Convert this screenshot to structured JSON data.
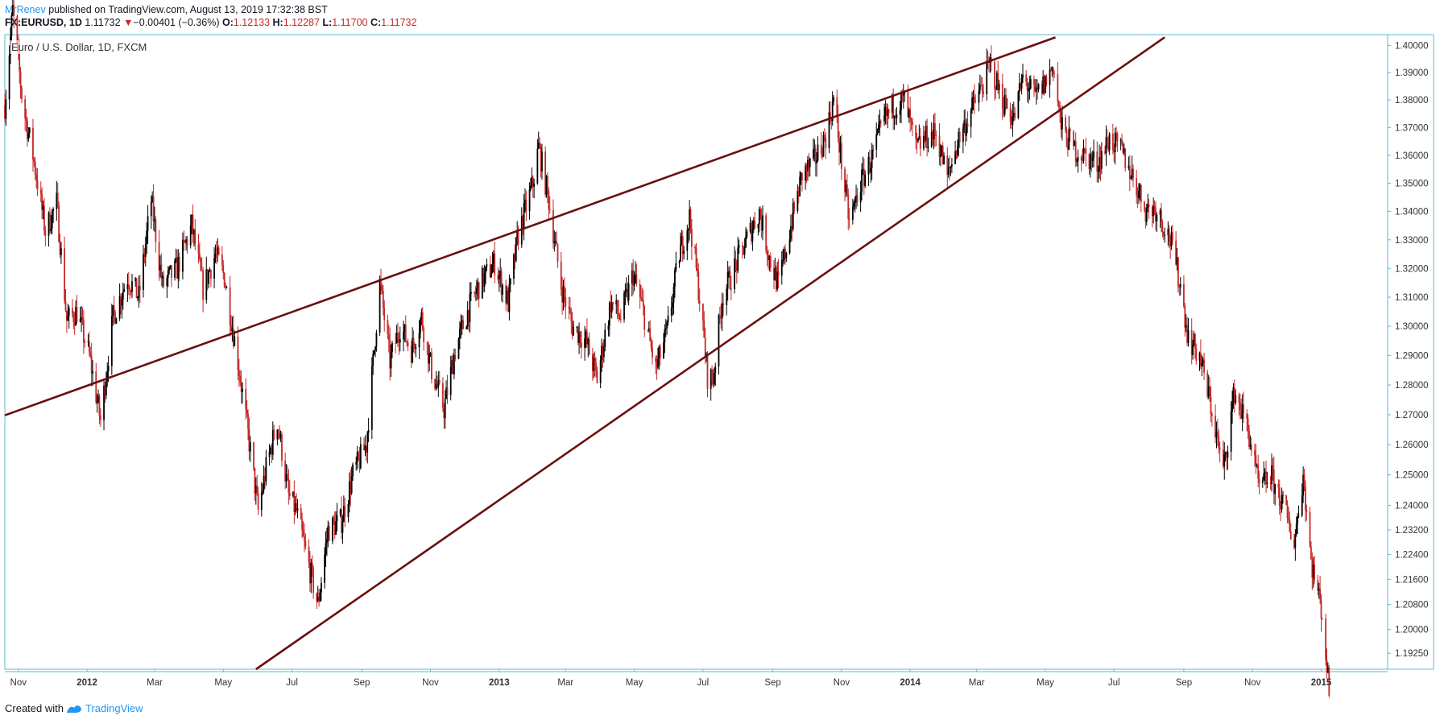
{
  "header": {
    "author": "MrRenev",
    "published": "published on TradingView.com, August 13, 2019 17:32:38 BST",
    "symbol": "FX:EURUSD, 1D",
    "price": "1.11732",
    "change_arrow": "▼",
    "change": "−0.00401 (−0.36%)",
    "o_label": "O:",
    "o_value": "1.12133",
    "h_label": "H:",
    "h_value": "1.12287",
    "l_label": "L:",
    "l_value": "1.11700",
    "c_label": "C:",
    "c_value": "1.11732"
  },
  "footer": {
    "created_with": "Created with",
    "brand": "TradingView"
  },
  "colors": {
    "up_candle": "#000000",
    "down_candle": "#c62828",
    "trendline": "#6b0f0f",
    "frame": "#5fb9d3",
    "author": "#2196f3"
  },
  "chart_data": {
    "type": "candlestick",
    "title": "Euro / U.S. Dollar, 1D, FXCM",
    "x_tick_labels": [
      "Nov",
      "2012",
      "Mar",
      "May",
      "Jul",
      "Sep",
      "Nov",
      "2013",
      "Mar",
      "May",
      "Jul",
      "Sep",
      "Nov",
      "2014",
      "Mar",
      "May",
      "Jul",
      "Sep",
      "Nov",
      "2015"
    ],
    "x_tick_dates": [
      "2011-11-01",
      "2012-01-01",
      "2012-03-01",
      "2012-05-01",
      "2012-07-01",
      "2012-09-01",
      "2012-11-01",
      "2013-01-01",
      "2013-03-01",
      "2013-05-01",
      "2013-07-01",
      "2013-09-01",
      "2013-11-01",
      "2014-01-01",
      "2014-03-01",
      "2014-05-01",
      "2014-07-01",
      "2014-09-01",
      "2014-11-01",
      "2015-01-01"
    ],
    "y_tick_labels": [
      "1.40000",
      "1.39000",
      "1.38000",
      "1.37000",
      "1.36000",
      "1.35000",
      "1.34000",
      "1.33000",
      "1.32000",
      "1.31000",
      "1.30000",
      "1.29000",
      "1.28000",
      "1.27000",
      "1.26000",
      "1.25000",
      "1.24000",
      "1.23200",
      "1.22400",
      "1.21600",
      "1.20800",
      "1.20000",
      "1.19250"
    ],
    "x_range": [
      "2011-10-20",
      "2015-03-01"
    ],
    "y_range": [
      1.1875,
      1.404
    ],
    "y_scale": "log",
    "grid": false,
    "price_path": [
      {
        "date": "2011-10-20",
        "close": 1.378
      },
      {
        "date": "2011-10-27",
        "close": 1.413
      },
      {
        "date": "2011-11-05",
        "close": 1.378
      },
      {
        "date": "2011-11-14",
        "close": 1.36
      },
      {
        "date": "2011-11-25",
        "close": 1.333
      },
      {
        "date": "2011-12-05",
        "close": 1.343
      },
      {
        "date": "2011-12-14",
        "close": 1.302
      },
      {
        "date": "2011-12-23",
        "close": 1.305
      },
      {
        "date": "2012-01-03",
        "close": 1.29
      },
      {
        "date": "2012-01-13",
        "close": 1.268
      },
      {
        "date": "2012-01-24",
        "close": 1.303
      },
      {
        "date": "2012-02-06",
        "close": 1.317
      },
      {
        "date": "2012-02-16",
        "close": 1.31
      },
      {
        "date": "2012-02-27",
        "close": 1.344
      },
      {
        "date": "2012-03-08",
        "close": 1.314
      },
      {
        "date": "2012-03-21",
        "close": 1.32
      },
      {
        "date": "2012-04-03",
        "close": 1.335
      },
      {
        "date": "2012-04-13",
        "close": 1.313
      },
      {
        "date": "2012-04-24",
        "close": 1.325
      },
      {
        "date": "2012-05-02",
        "close": 1.317
      },
      {
        "date": "2012-05-14",
        "close": 1.288
      },
      {
        "date": "2012-05-25",
        "close": 1.258
      },
      {
        "date": "2012-06-01",
        "close": 1.238
      },
      {
        "date": "2012-06-08",
        "close": 1.252
      },
      {
        "date": "2012-06-18",
        "close": 1.268
      },
      {
        "date": "2012-06-28",
        "close": 1.243
      },
      {
        "date": "2012-07-05",
        "close": 1.238
      },
      {
        "date": "2012-07-13",
        "close": 1.225
      },
      {
        "date": "2012-07-24",
        "close": 1.208
      },
      {
        "date": "2012-08-02",
        "close": 1.232
      },
      {
        "date": "2012-08-14",
        "close": 1.235
      },
      {
        "date": "2012-08-24",
        "close": 1.25
      },
      {
        "date": "2012-09-05",
        "close": 1.26
      },
      {
        "date": "2012-09-17",
        "close": 1.315
      },
      {
        "date": "2012-09-26",
        "close": 1.288
      },
      {
        "date": "2012-10-05",
        "close": 1.3
      },
      {
        "date": "2012-10-15",
        "close": 1.292
      },
      {
        "date": "2012-10-24",
        "close": 1.303
      },
      {
        "date": "2012-11-02",
        "close": 1.285
      },
      {
        "date": "2012-11-13",
        "close": 1.272
      },
      {
        "date": "2012-11-23",
        "close": 1.292
      },
      {
        "date": "2012-12-05",
        "close": 1.306
      },
      {
        "date": "2012-12-14",
        "close": 1.314
      },
      {
        "date": "2012-12-28",
        "close": 1.322
      },
      {
        "date": "2013-01-09",
        "close": 1.308
      },
      {
        "date": "2013-01-18",
        "close": 1.332
      },
      {
        "date": "2013-01-31",
        "close": 1.35
      },
      {
        "date": "2013-02-05",
        "close": 1.363
      },
      {
        "date": "2013-02-14",
        "close": 1.344
      },
      {
        "date": "2013-02-25",
        "close": 1.314
      },
      {
        "date": "2013-03-07",
        "close": 1.3
      },
      {
        "date": "2013-03-19",
        "close": 1.295
      },
      {
        "date": "2013-03-29",
        "close": 1.282
      },
      {
        "date": "2013-04-10",
        "close": 1.308
      },
      {
        "date": "2013-04-19",
        "close": 1.303
      },
      {
        "date": "2013-04-30",
        "close": 1.318
      },
      {
        "date": "2013-05-09",
        "close": 1.305
      },
      {
        "date": "2013-05-20",
        "close": 1.285
      },
      {
        "date": "2013-05-30",
        "close": 1.298
      },
      {
        "date": "2013-06-10",
        "close": 1.325
      },
      {
        "date": "2013-06-19",
        "close": 1.338
      },
      {
        "date": "2013-06-28",
        "close": 1.31
      },
      {
        "date": "2013-07-05",
        "close": 1.283
      },
      {
        "date": "2013-07-10",
        "close": 1.282
      },
      {
        "date": "2013-07-18",
        "close": 1.31
      },
      {
        "date": "2013-07-30",
        "close": 1.321
      },
      {
        "date": "2013-08-12",
        "close": 1.333
      },
      {
        "date": "2013-08-20",
        "close": 1.34
      },
      {
        "date": "2013-08-30",
        "close": 1.322
      },
      {
        "date": "2013-09-06",
        "close": 1.314
      },
      {
        "date": "2013-09-17",
        "close": 1.335
      },
      {
        "date": "2013-09-27",
        "close": 1.353
      },
      {
        "date": "2013-10-08",
        "close": 1.358
      },
      {
        "date": "2013-10-18",
        "close": 1.367
      },
      {
        "date": "2013-10-25",
        "close": 1.38
      },
      {
        "date": "2013-11-04",
        "close": 1.348
      },
      {
        "date": "2013-11-08",
        "close": 1.336
      },
      {
        "date": "2013-11-18",
        "close": 1.35
      },
      {
        "date": "2013-11-28",
        "close": 1.359
      },
      {
        "date": "2013-12-09",
        "close": 1.373
      },
      {
        "date": "2013-12-18",
        "close": 1.378
      },
      {
        "date": "2013-12-27",
        "close": 1.38
      },
      {
        "date": "2014-01-06",
        "close": 1.362
      },
      {
        "date": "2014-01-14",
        "close": 1.366
      },
      {
        "date": "2014-01-24",
        "close": 1.368
      },
      {
        "date": "2014-02-03",
        "close": 1.352
      },
      {
        "date": "2014-02-13",
        "close": 1.366
      },
      {
        "date": "2014-02-24",
        "close": 1.376
      },
      {
        "date": "2014-03-06",
        "close": 1.385
      },
      {
        "date": "2014-03-13",
        "close": 1.393
      },
      {
        "date": "2014-03-24",
        "close": 1.38
      },
      {
        "date": "2014-04-03",
        "close": 1.373
      },
      {
        "date": "2014-04-11",
        "close": 1.388
      },
      {
        "date": "2014-04-22",
        "close": 1.381
      },
      {
        "date": "2014-05-02",
        "close": 1.387
      },
      {
        "date": "2014-05-08",
        "close": 1.393
      },
      {
        "date": "2014-05-15",
        "close": 1.37
      },
      {
        "date": "2014-05-27",
        "close": 1.362
      },
      {
        "date": "2014-06-05",
        "close": 1.36
      },
      {
        "date": "2014-06-16",
        "close": 1.357
      },
      {
        "date": "2014-06-27",
        "close": 1.366
      },
      {
        "date": "2014-07-08",
        "close": 1.361
      },
      {
        "date": "2014-07-17",
        "close": 1.353
      },
      {
        "date": "2014-07-29",
        "close": 1.341
      },
      {
        "date": "2014-08-08",
        "close": 1.341
      },
      {
        "date": "2014-08-20",
        "close": 1.33
      },
      {
        "date": "2014-08-29",
        "close": 1.314
      },
      {
        "date": "2014-09-05",
        "close": 1.296
      },
      {
        "date": "2014-09-15",
        "close": 1.29
      },
      {
        "date": "2014-09-26",
        "close": 1.271
      },
      {
        "date": "2014-10-06",
        "close": 1.251
      },
      {
        "date": "2014-10-16",
        "close": 1.278
      },
      {
        "date": "2014-10-28",
        "close": 1.265
      },
      {
        "date": "2014-11-07",
        "close": 1.245
      },
      {
        "date": "2014-11-17",
        "close": 1.25
      },
      {
        "date": "2014-11-28",
        "close": 1.24
      },
      {
        "date": "2014-12-08",
        "close": 1.228
      },
      {
        "date": "2014-12-16",
        "close": 1.25
      },
      {
        "date": "2014-12-23",
        "close": 1.222
      },
      {
        "date": "2015-01-02",
        "close": 1.205
      },
      {
        "date": "2015-01-08",
        "close": 1.18
      }
    ],
    "trendlines": [
      {
        "name": "upper",
        "points": [
          {
            "date": "2011-10-20",
            "price": 1.2698
          },
          {
            "date": "2014-05-10",
            "price": 1.403
          }
        ]
      },
      {
        "name": "lower",
        "points": [
          {
            "date": "2012-05-30",
            "price": 1.1875
          },
          {
            "date": "2014-08-15",
            "price": 1.403
          }
        ]
      }
    ]
  }
}
